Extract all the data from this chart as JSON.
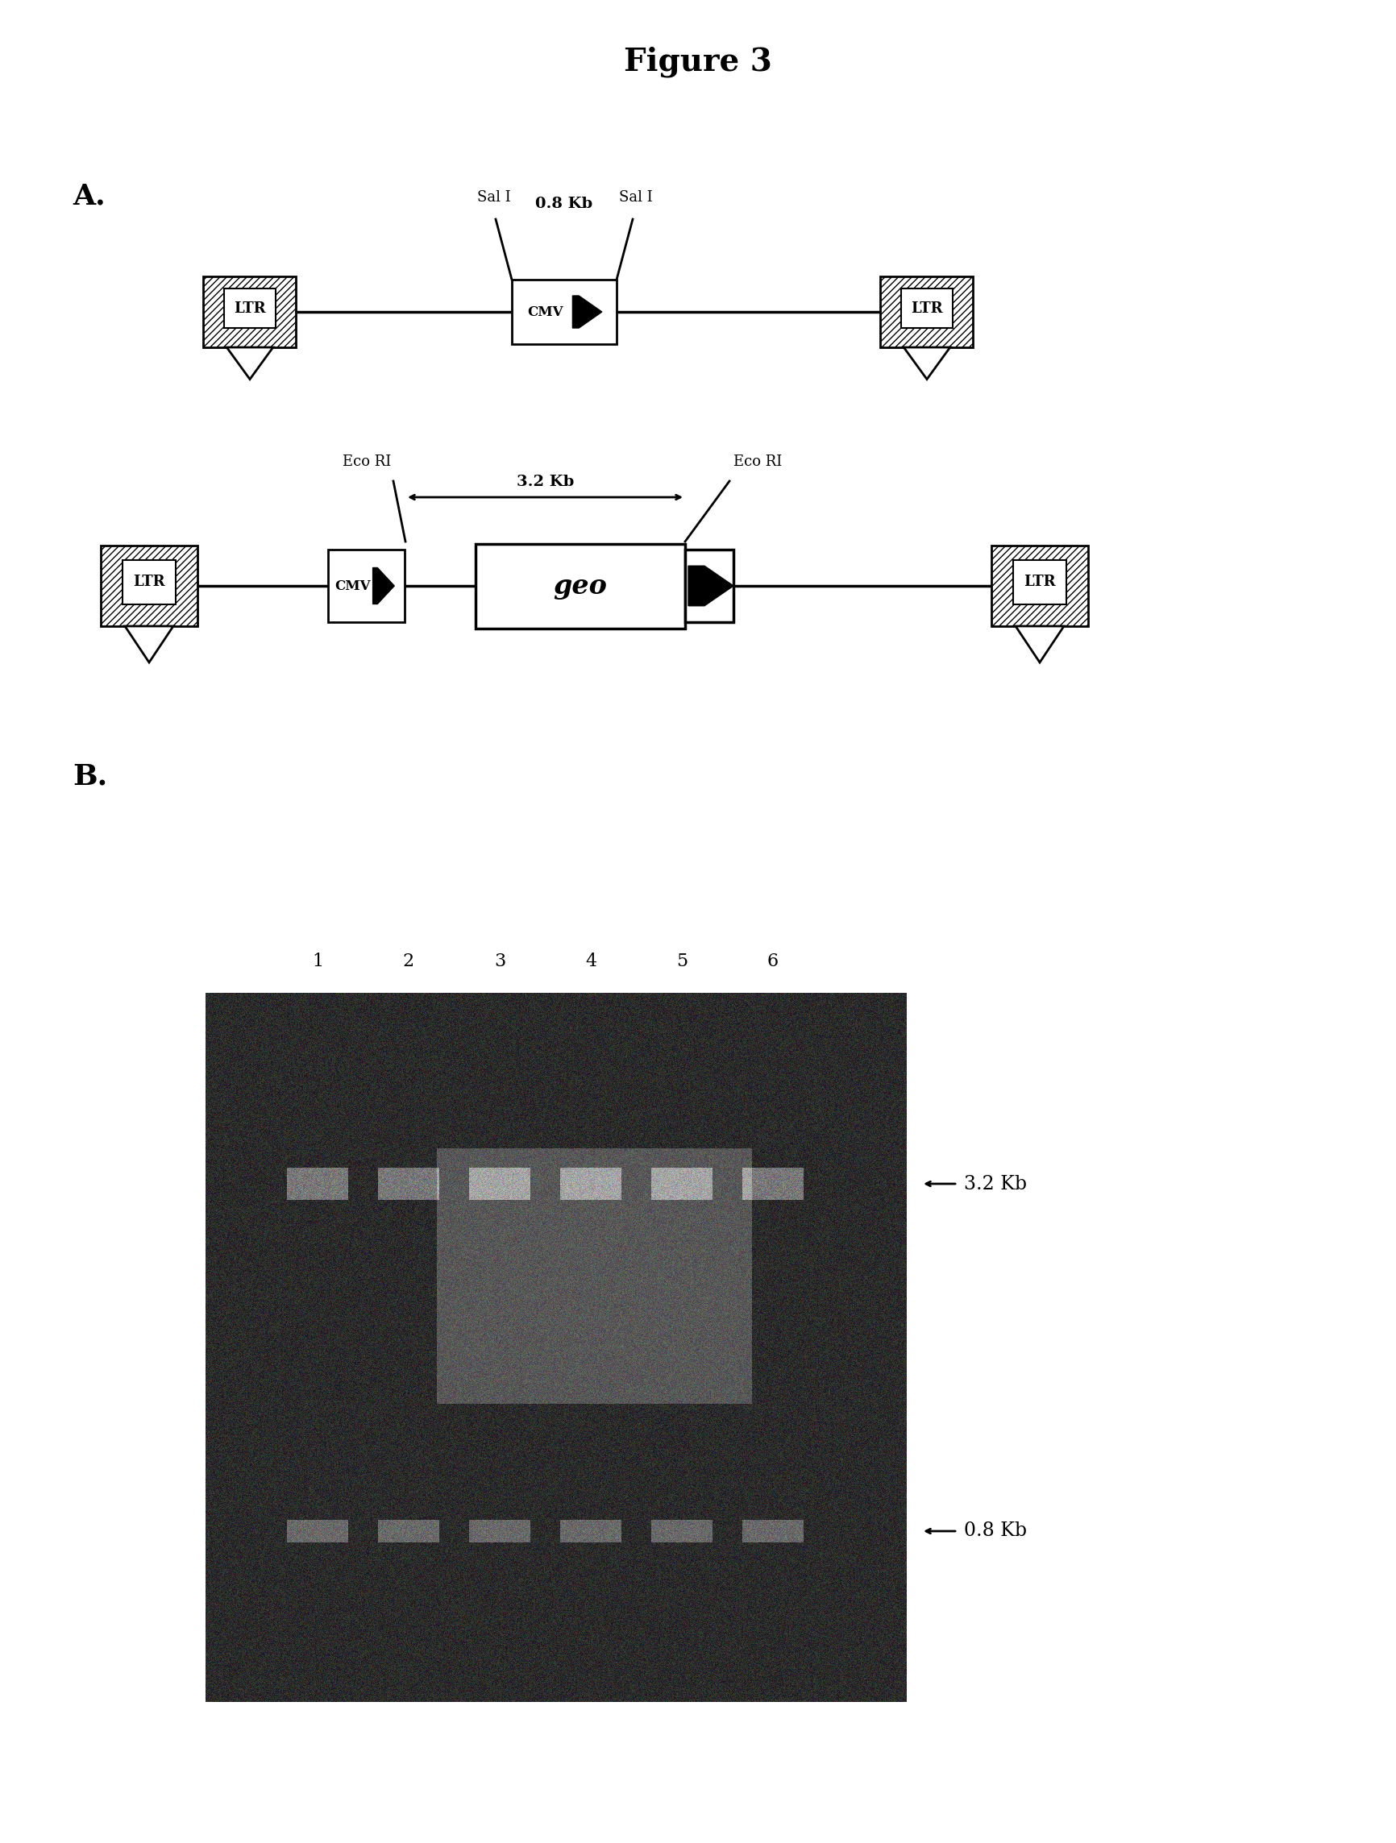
{
  "title": "Figure 3",
  "title_fontsize": 28,
  "title_fontweight": "bold",
  "bg_color": "#ffffff",
  "panel_A_label": "A.",
  "panel_B_label": "B.",
  "diagram1": {
    "sal_i_left_label": "Sal I",
    "sal_i_right_label": "Sal I",
    "size_label": "0.8 Kb",
    "ltr_label": "LTR",
    "cmv_label": "CMV"
  },
  "diagram2": {
    "eco_ri_left_label": "Eco RI",
    "eco_ri_right_label": "Eco RI",
    "size_label": "3.2 Kb",
    "ltr_label": "LTR",
    "cmv_label": "CMV",
    "geo_label": "geo"
  },
  "gel_lanes": [
    "1",
    "2",
    "3",
    "4",
    "5",
    "6"
  ],
  "gel_band1_label": "3.2 Kb",
  "gel_band2_label": "0.8 Kb"
}
